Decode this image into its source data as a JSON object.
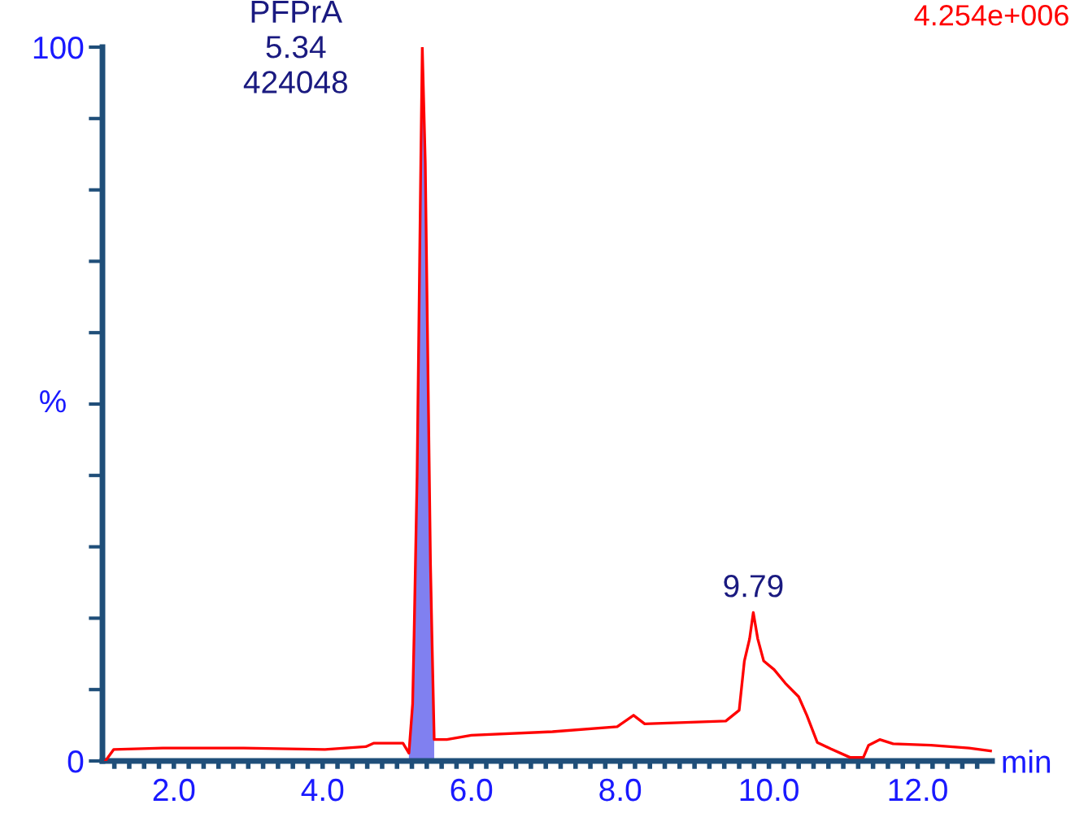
{
  "chart_data": {
    "type": "line",
    "xlabel": "min",
    "ylabel": "%",
    "annotations": [
      {
        "text": "PFPrA\n5.34\n424048",
        "x": 5.34,
        "y": 100
      },
      {
        "text": "9.79",
        "x": 9.79,
        "y": 20.8
      },
      "4.254e+006"
    ],
    "xlim": [
      1.04,
      13.0
    ],
    "ylim": [
      0,
      100
    ],
    "xticks": [
      {
        "value": 1.2,
        "label": null
      },
      {
        "value": 1.4,
        "label": null
      },
      {
        "value": 1.6,
        "label": null
      },
      {
        "value": 1.8,
        "label": null
      },
      {
        "value": 2.0,
        "label": "2.0"
      },
      {
        "value": 2.2,
        "label": null
      },
      {
        "value": 2.4,
        "label": null
      },
      {
        "value": 2.6,
        "label": null
      },
      {
        "value": 2.8,
        "label": null
      },
      {
        "value": 3.0,
        "label": null
      },
      {
        "value": 3.2,
        "label": null
      },
      {
        "value": 3.4,
        "label": null
      },
      {
        "value": 3.6,
        "label": null
      },
      {
        "value": 3.8,
        "label": null
      },
      {
        "value": 4.0,
        "label": "4.0"
      },
      {
        "value": 4.2,
        "label": null
      },
      {
        "value": 4.4,
        "label": null
      },
      {
        "value": 4.6,
        "label": null
      },
      {
        "value": 4.8,
        "label": null
      },
      {
        "value": 5.0,
        "label": null
      },
      {
        "value": 5.2,
        "label": null
      },
      {
        "value": 5.4,
        "label": null
      },
      {
        "value": 5.6,
        "label": null
      },
      {
        "value": 5.8,
        "label": null
      },
      {
        "value": 6.0,
        "label": "6.0"
      },
      {
        "value": 6.2,
        "label": null
      },
      {
        "value": 6.4,
        "label": null
      },
      {
        "value": 6.6,
        "label": null
      },
      {
        "value": 6.8,
        "label": null
      },
      {
        "value": 7.0,
        "label": null
      },
      {
        "value": 7.2,
        "label": null
      },
      {
        "value": 7.4,
        "label": null
      },
      {
        "value": 7.6,
        "label": null
      },
      {
        "value": 7.8,
        "label": null
      },
      {
        "value": 8.0,
        "label": "8.0"
      },
      {
        "value": 8.2,
        "label": null
      },
      {
        "value": 8.4,
        "label": null
      },
      {
        "value": 8.6,
        "label": null
      },
      {
        "value": 8.8,
        "label": null
      },
      {
        "value": 9.0,
        "label": null
      },
      {
        "value": 9.2,
        "label": null
      },
      {
        "value": 9.4,
        "label": null
      },
      {
        "value": 9.6,
        "label": null
      },
      {
        "value": 9.8,
        "label": null
      },
      {
        "value": 10.0,
        "label": "10.0"
      },
      {
        "value": 10.2,
        "label": null
      },
      {
        "value": 10.4,
        "label": null
      },
      {
        "value": 10.6,
        "label": null
      },
      {
        "value": 10.8,
        "label": null
      },
      {
        "value": 11.0,
        "label": null
      },
      {
        "value": 11.2,
        "label": null
      },
      {
        "value": 11.4,
        "label": null
      },
      {
        "value": 11.6,
        "label": null
      },
      {
        "value": 11.8,
        "label": null
      },
      {
        "value": 12.0,
        "label": "12.0"
      },
      {
        "value": 12.2,
        "label": null
      },
      {
        "value": 12.4,
        "label": null
      },
      {
        "value": 12.6,
        "label": null
      },
      {
        "value": 12.8,
        "label": null
      }
    ],
    "yticks": [
      0,
      {
        "value": 10,
        "label": null
      },
      {
        "value": 20,
        "label": null
      },
      {
        "value": 30,
        "label": null
      },
      {
        "value": 40,
        "label": null
      },
      {
        "value": 50,
        "label": null
      },
      {
        "value": 60,
        "label": null
      },
      {
        "value": 70,
        "label": null
      },
      {
        "value": 80,
        "label": null
      },
      {
        "value": 90,
        "label": null
      },
      100
    ],
    "grid": false,
    "marker": "none",
    "line_style": "solid",
    "series": [
      {
        "color": "#ff0000",
        "x": [
          1.08,
          1.19,
          1.85,
          2.94,
          4.03,
          4.58,
          4.69,
          5.08,
          5.16,
          5.21,
          5.23,
          5.27,
          5.32,
          5.34,
          5.38,
          5.45,
          5.47,
          5.5,
          5.67,
          6.0,
          7.09,
          7.96,
          8.18,
          8.33,
          9.42,
          9.6,
          9.67,
          9.74,
          9.79,
          9.85,
          9.93,
          10.07,
          10.22,
          10.4,
          10.51,
          10.65,
          10.83,
          11.09,
          11.27,
          11.34,
          11.49,
          11.67,
          12.18,
          12.69,
          12.98
        ],
        "values": [
          0,
          1.6,
          1.8,
          1.8,
          1.6,
          2.0,
          2.5,
          2.5,
          1.1,
          8.0,
          17.8,
          39.9,
          83.8,
          100,
          83.8,
          27.6,
          17.3,
          3.0,
          3.0,
          3.6,
          4.1,
          4.8,
          6.4,
          5.2,
          5.6,
          7.1,
          14.0,
          17.1,
          20.8,
          17.1,
          14.0,
          12.8,
          10.9,
          9.0,
          6.4,
          2.6,
          1.7,
          0.5,
          0.5,
          2.2,
          3.0,
          2.4,
          2.2,
          1.8,
          1.4
        ]
      },
      {
        "type": "area",
        "color": "#8080f0",
        "x": [
          5.16,
          5.21,
          5.23,
          5.27,
          5.32,
          5.34,
          5.38,
          5.45,
          5.47,
          5.5
        ],
        "values": [
          1.1,
          8.0,
          17.8,
          39.9,
          83.8,
          100,
          83.8,
          27.6,
          17.3,
          3.0
        ]
      }
    ]
  }
}
